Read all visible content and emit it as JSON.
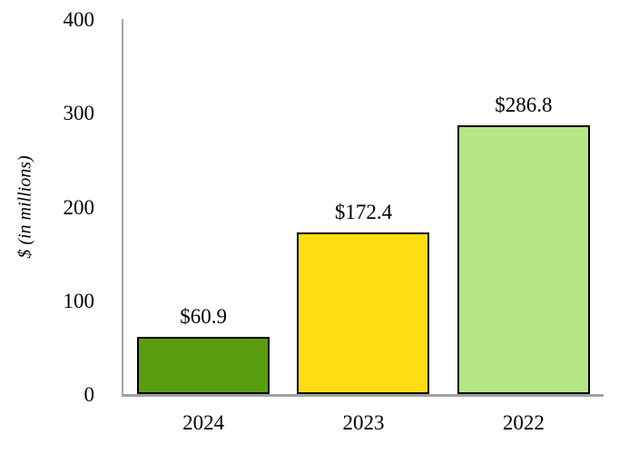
{
  "chart_data": {
    "type": "bar",
    "categories": [
      "2024",
      "2023",
      "2022"
    ],
    "values": [
      60.9,
      172.4,
      286.8
    ],
    "value_labels": [
      "$60.9",
      "$172.4",
      "$286.8"
    ],
    "bar_colors": [
      "#5a9e10",
      "#ffdd13",
      "#b6e786"
    ],
    "bar_border_color": "#000000",
    "title": "",
    "xlabel": "",
    "ylabel": "$ (in millions)",
    "ylim": [
      0,
      400
    ],
    "yticks": [
      0,
      100,
      200,
      300,
      400
    ],
    "grid": false,
    "legend": "none",
    "axis_color": "#a6a6a6"
  }
}
